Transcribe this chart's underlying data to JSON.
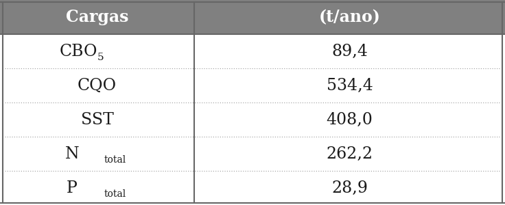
{
  "header": [
    "Cargas",
    "(t/ano)"
  ],
  "rows": [
    [
      "CBO_5",
      "89,4"
    ],
    [
      "CQO",
      "534,4"
    ],
    [
      "SST",
      "408,0"
    ],
    [
      "N_total",
      "262,2"
    ],
    [
      "P_total",
      "28,9"
    ]
  ],
  "header_bg": "#808080",
  "header_text_color": "#ffffff",
  "body_bg": "#ffffff",
  "body_text_color": "#1a1a1a",
  "border_color": "#666666",
  "divider_color": "#999999",
  "col_split": 0.385,
  "figsize": [
    7.36,
    3.0
  ],
  "dpi": 100,
  "header_fontsize": 17,
  "body_fontsize": 17,
  "subscript_fontsize": 11
}
